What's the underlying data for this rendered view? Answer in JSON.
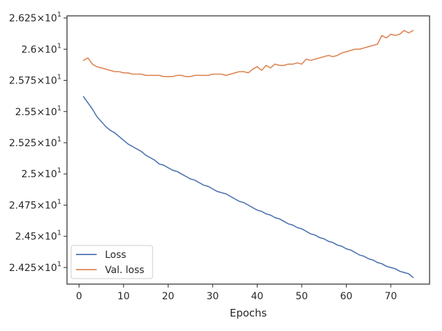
{
  "chart_data": {
    "type": "line",
    "title": "",
    "xlabel": "Epochs",
    "ylabel": "",
    "xlim": [
      -2.7,
      78.7
    ],
    "ylim": [
      24.117,
      26.267
    ],
    "grid": false,
    "legend_position": "lower-left",
    "x_ticks": [
      0,
      10,
      20,
      30,
      40,
      50,
      60,
      70
    ],
    "y_ticks": [
      {
        "value": 24.25,
        "mantissa": "2.425",
        "exponent": "1"
      },
      {
        "value": 24.5,
        "mantissa": "2.45",
        "exponent": "1"
      },
      {
        "value": 24.75,
        "mantissa": "2.475",
        "exponent": "1"
      },
      {
        "value": 25.0,
        "mantissa": "2.5",
        "exponent": "1"
      },
      {
        "value": 25.25,
        "mantissa": "2.525",
        "exponent": "1"
      },
      {
        "value": 25.5,
        "mantissa": "2.55",
        "exponent": "1"
      },
      {
        "value": 25.75,
        "mantissa": "2.575",
        "exponent": "1"
      },
      {
        "value": 26.0,
        "mantissa": "2.6",
        "exponent": "1"
      },
      {
        "value": 26.25,
        "mantissa": "2.625",
        "exponent": "1"
      }
    ],
    "x": [
      1,
      2,
      3,
      4,
      5,
      6,
      7,
      8,
      9,
      10,
      11,
      12,
      13,
      14,
      15,
      16,
      17,
      18,
      19,
      20,
      21,
      22,
      23,
      24,
      25,
      26,
      27,
      28,
      29,
      30,
      31,
      32,
      33,
      34,
      35,
      36,
      37,
      38,
      39,
      40,
      41,
      42,
      43,
      44,
      45,
      46,
      47,
      48,
      49,
      50,
      51,
      52,
      53,
      54,
      55,
      56,
      57,
      58,
      59,
      60,
      61,
      62,
      63,
      64,
      65,
      66,
      67,
      68,
      69,
      70,
      71,
      72,
      73,
      74,
      75
    ],
    "series": [
      {
        "name": "Loss",
        "color": "#4c72b0",
        "values": [
          25.62,
          25.57,
          25.52,
          25.46,
          25.42,
          25.38,
          25.35,
          25.33,
          25.3,
          25.27,
          25.24,
          25.22,
          25.2,
          25.18,
          25.15,
          25.13,
          25.11,
          25.08,
          25.07,
          25.05,
          25.03,
          25.02,
          25.0,
          24.98,
          24.96,
          24.95,
          24.93,
          24.91,
          24.9,
          24.88,
          24.86,
          24.85,
          24.84,
          24.82,
          24.8,
          24.78,
          24.77,
          24.75,
          24.73,
          24.71,
          24.7,
          24.68,
          24.67,
          24.65,
          24.64,
          24.62,
          24.6,
          24.59,
          24.57,
          24.56,
          24.54,
          24.52,
          24.51,
          24.49,
          24.48,
          24.46,
          24.45,
          24.43,
          24.42,
          24.4,
          24.39,
          24.37,
          24.35,
          24.34,
          24.32,
          24.31,
          24.29,
          24.28,
          24.26,
          24.25,
          24.24,
          24.22,
          24.21,
          24.2,
          24.17
        ]
      },
      {
        "name": "Val. loss",
        "color": "#dd8452",
        "values": [
          25.91,
          25.93,
          25.88,
          25.86,
          25.85,
          25.84,
          25.83,
          25.82,
          25.82,
          25.81,
          25.81,
          25.8,
          25.8,
          25.8,
          25.79,
          25.79,
          25.79,
          25.79,
          25.78,
          25.78,
          25.78,
          25.79,
          25.79,
          25.78,
          25.78,
          25.79,
          25.79,
          25.79,
          25.79,
          25.8,
          25.8,
          25.8,
          25.79,
          25.8,
          25.81,
          25.82,
          25.82,
          25.81,
          25.84,
          25.86,
          25.83,
          25.87,
          25.85,
          25.88,
          25.87,
          25.87,
          25.88,
          25.88,
          25.89,
          25.88,
          25.92,
          25.91,
          25.92,
          25.93,
          25.94,
          25.95,
          25.94,
          25.95,
          25.97,
          25.98,
          25.99,
          26.0,
          26.0,
          26.01,
          26.02,
          26.03,
          26.04,
          26.11,
          26.09,
          26.12,
          26.11,
          26.12,
          26.15,
          26.13,
          26.15
        ]
      }
    ]
  }
}
